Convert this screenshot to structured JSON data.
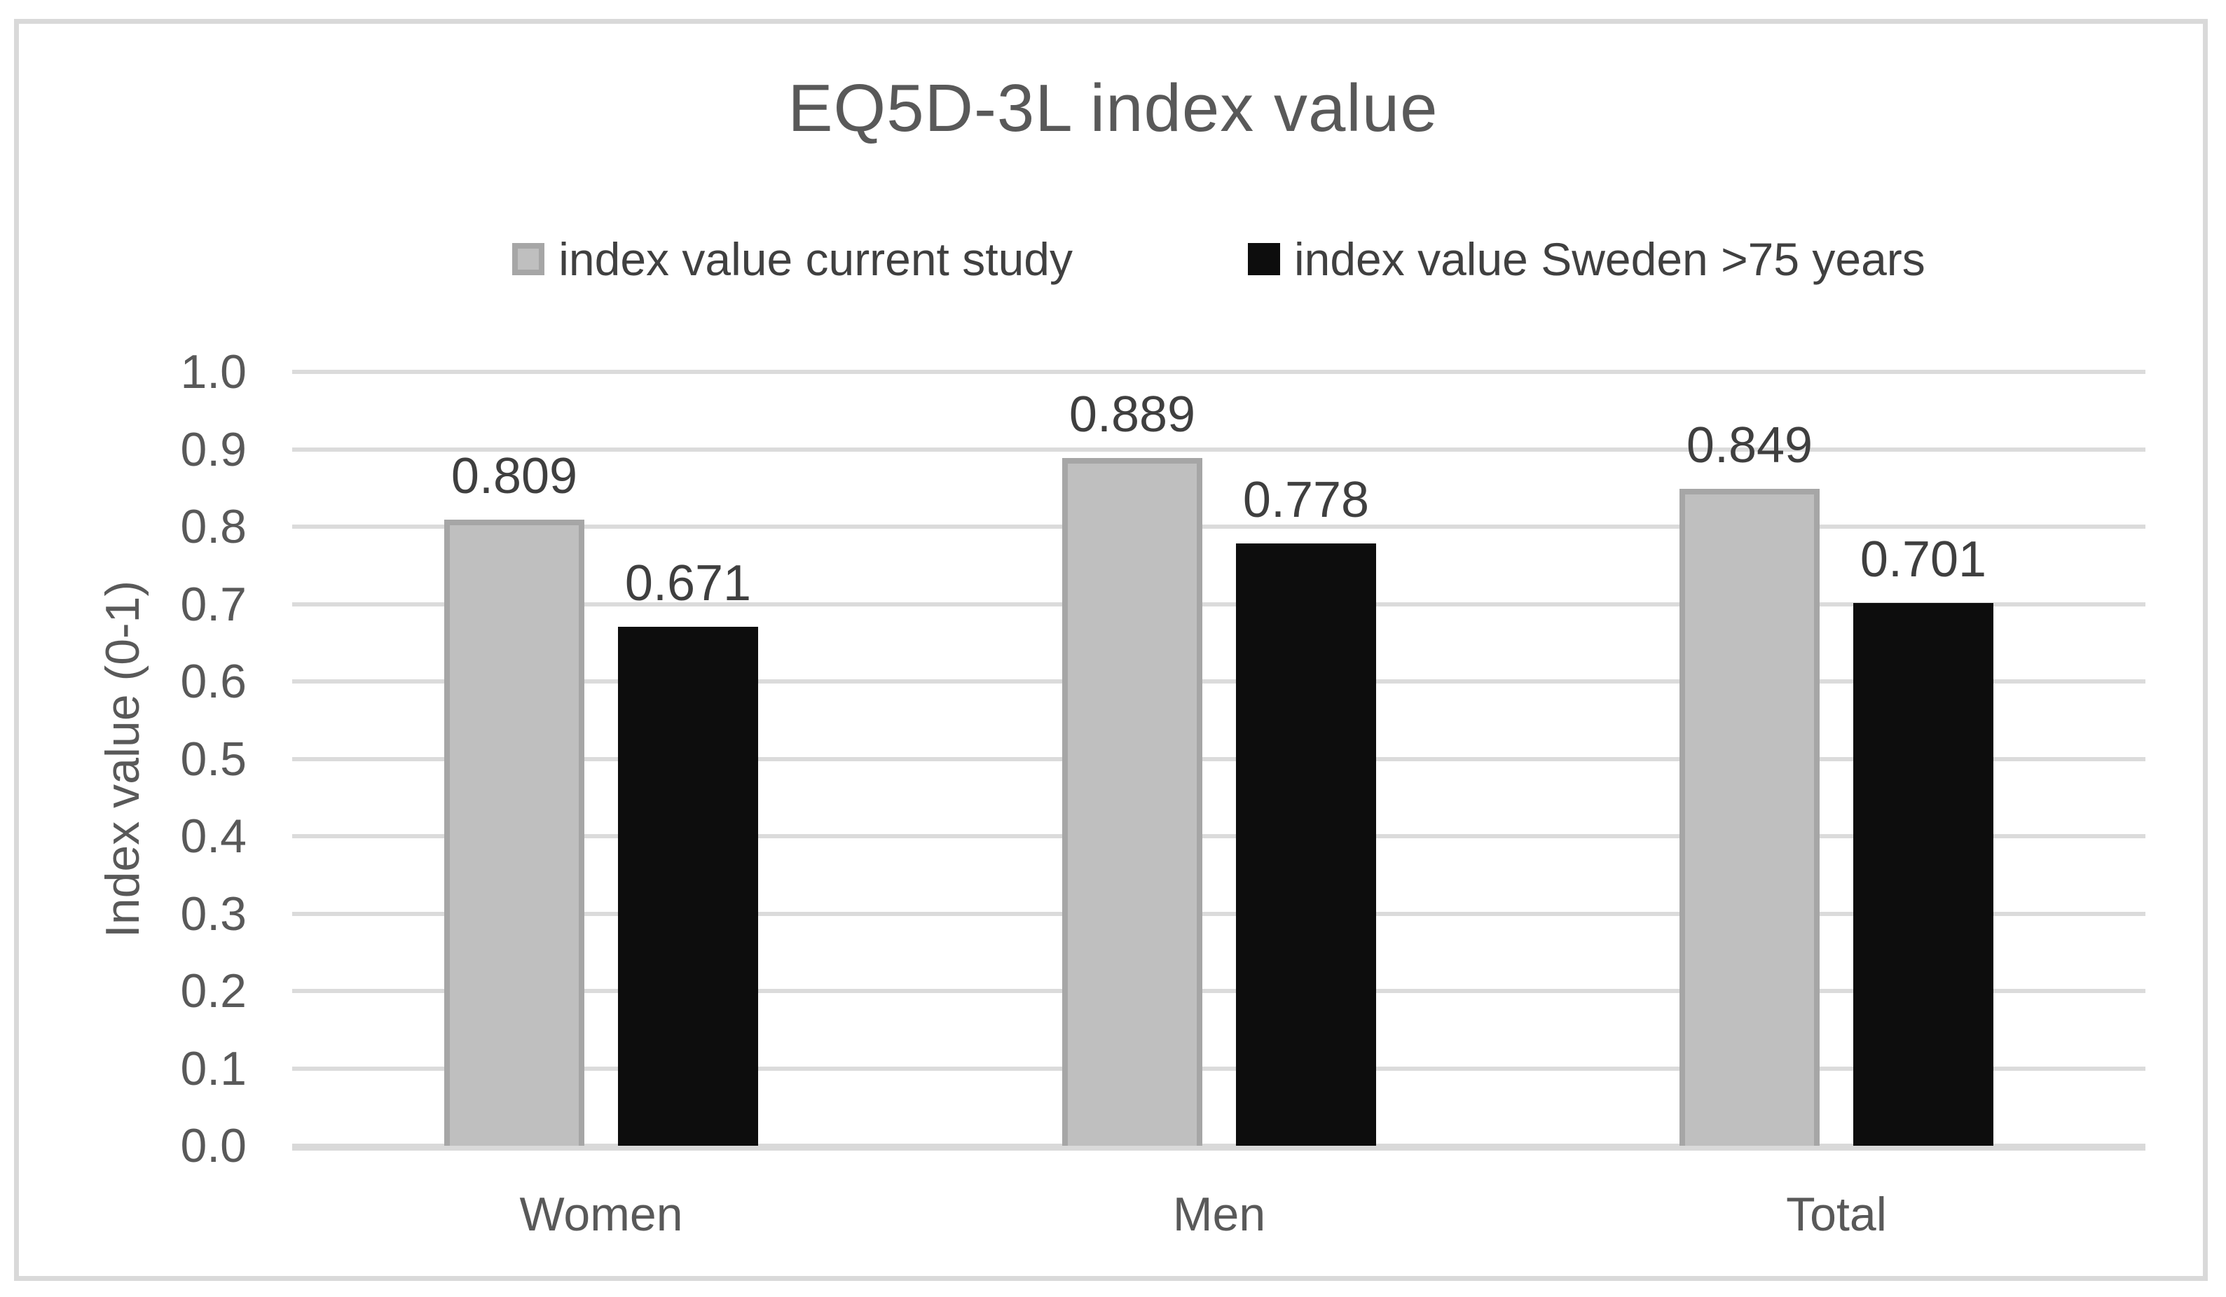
{
  "chart_data": {
    "type": "bar",
    "title": "EQ5D-3L index value",
    "categories": [
      "Women",
      "Men",
      "Total"
    ],
    "series": [
      {
        "name": "index value current study",
        "color": "#BFBFBF",
        "border_color": "#A6A6A6",
        "values": [
          0.809,
          0.889,
          0.849
        ],
        "data_labels": [
          "0.809",
          "0.889",
          "0.849"
        ]
      },
      {
        "name": "index value Sweden >75 years",
        "color": "#0D0D0D",
        "border_color": "#0D0D0D",
        "values": [
          0.671,
          0.778,
          0.701
        ],
        "data_labels": [
          "0.671",
          "0.778",
          "0.701"
        ]
      }
    ],
    "xlabel": "",
    "ylabel": "Index value (0-1)",
    "ylim": [
      0.0,
      1.0
    ],
    "y_tick_labels": [
      "1.0",
      "0.9",
      "0.8",
      "0.7",
      "0.6",
      "0.5",
      "0.4",
      "0.3",
      "0.2",
      "0.1",
      "0.0"
    ],
    "grid": true,
    "legend_position": "top-center"
  },
  "style": {
    "gridline_color": "#DBDBDB",
    "axis_line_color": "#D9D9D9",
    "border_color": "#D9D9D9",
    "title_color": "#595959",
    "tick_color": "#595959",
    "data_label_color": "#3F3F3F",
    "background": "#FFFFFF"
  }
}
